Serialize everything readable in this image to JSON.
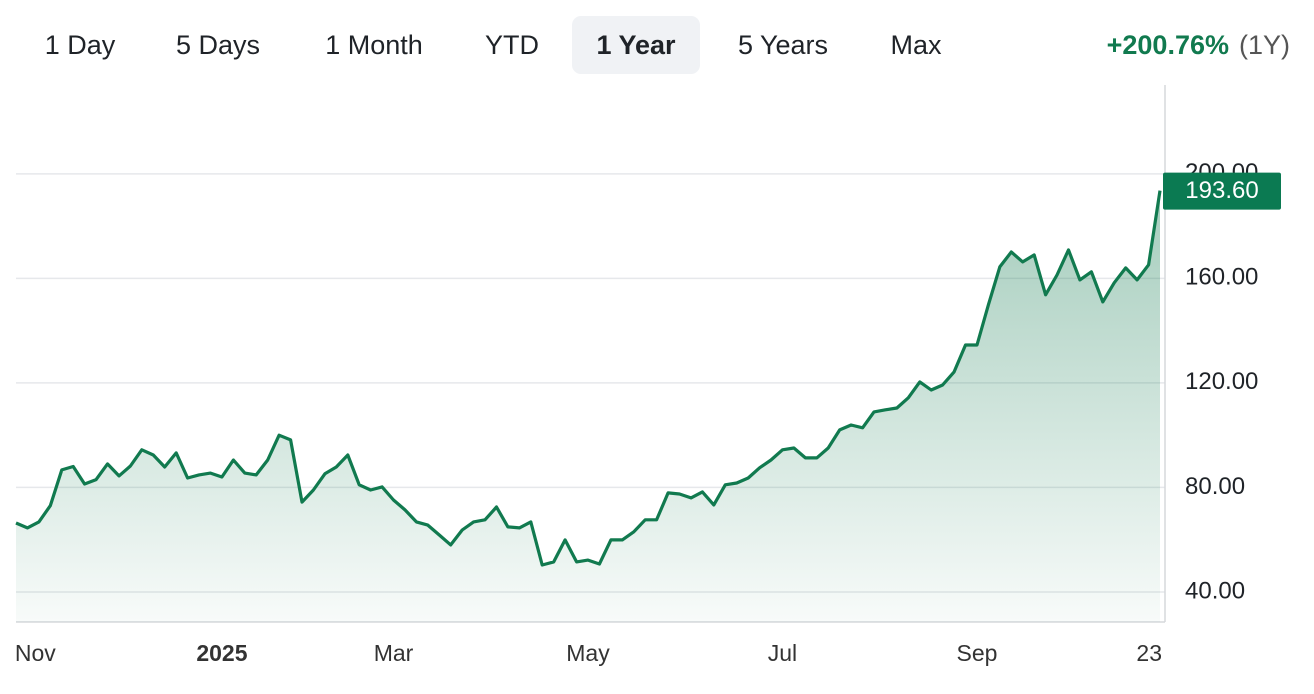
{
  "toolbar": {
    "ranges": [
      "1 Day",
      "5 Days",
      "1 Month",
      "YTD",
      "1 Year",
      "5 Years",
      "Max"
    ],
    "selected": 4,
    "change": "+200.76%",
    "period": "(1Y)"
  },
  "chart_data": {
    "type": "area",
    "color": "#117a4f",
    "values": [
      66.4,
      64.5,
      66.8,
      73,
      86.7,
      88,
      81.3,
      83,
      89,
      84.4,
      88.2,
      94.4,
      92.4,
      87.8,
      93.2,
      83.6,
      84.8,
      85.5,
      84,
      90.5,
      85.5,
      84.8,
      90.5,
      100,
      98.2,
      74.4,
      79,
      85.2,
      87.8,
      92.4,
      81,
      79,
      80.2,
      75.2,
      71.4,
      66.8,
      65.6,
      61.8,
      58,
      63.7,
      66.8,
      67.6,
      72.5,
      64.9,
      64.5,
      66.8,
      50.3,
      51.5,
      59.9,
      51.5,
      52.2,
      50.7,
      59.9,
      59.9,
      63,
      67.6,
      67.6,
      77.9,
      77.5,
      76,
      78.3,
      73.3,
      81,
      81.7,
      83.6,
      87.5,
      90.5,
      94.4,
      95.1,
      91.3,
      91.3,
      95.1,
      102,
      103.9,
      102.8,
      108.9,
      109.7,
      110.4,
      114.3,
      120.4,
      117.3,
      119.2,
      124.2,
      134.5,
      134.5,
      149.9,
      164.4,
      170.1,
      166.3,
      169,
      153.7,
      161.3,
      170.9,
      159.4,
      162.5,
      151,
      158.3,
      164,
      159.4,
      165.2,
      193.6
    ],
    "value_labels": [
      null,
      null,
      null,
      null,
      null,
      null,
      null,
      null,
      null,
      null,
      null,
      null,
      null,
      null,
      null,
      null,
      null,
      null,
      null,
      null,
      null,
      null,
      null,
      null,
      null,
      null,
      null,
      null,
      null,
      null,
      null,
      null,
      null,
      null,
      null,
      null,
      null,
      null,
      null,
      null,
      null,
      null,
      null,
      null,
      null,
      null,
      null,
      null,
      null,
      null,
      null,
      null,
      null,
      null,
      null,
      null,
      null,
      null,
      null,
      null,
      null,
      null,
      null,
      null,
      null,
      null,
      null,
      null,
      null,
      null,
      null,
      null,
      null,
      null,
      null,
      null,
      null,
      null,
      null,
      null,
      null,
      null,
      null,
      null,
      null,
      null,
      null,
      null,
      null,
      null,
      null,
      null,
      null,
      null,
      null,
      null,
      null,
      null,
      null,
      null,
      "193.60"
    ],
    "xticks": [
      {
        "value": 2,
        "label": "Nov"
      },
      {
        "value": 18,
        "label": "2025"
      },
      {
        "value": 33,
        "label": "Mar"
      },
      {
        "value": 50,
        "label": "May"
      },
      {
        "value": 67,
        "label": "Jul"
      },
      {
        "value": 84,
        "label": "Sep"
      },
      {
        "value": 100,
        "label": "23"
      }
    ],
    "ylim": [
      28.5,
      234
    ],
    "yticks": [
      {
        "value": 40,
        "label": "40.00"
      },
      {
        "value": 80,
        "label": "80.00"
      },
      {
        "value": 120,
        "label": "120.00"
      },
      {
        "value": 160,
        "label": "160.00"
      },
      {
        "value": 200,
        "label": "200.00"
      }
    ],
    "grid": true
  }
}
